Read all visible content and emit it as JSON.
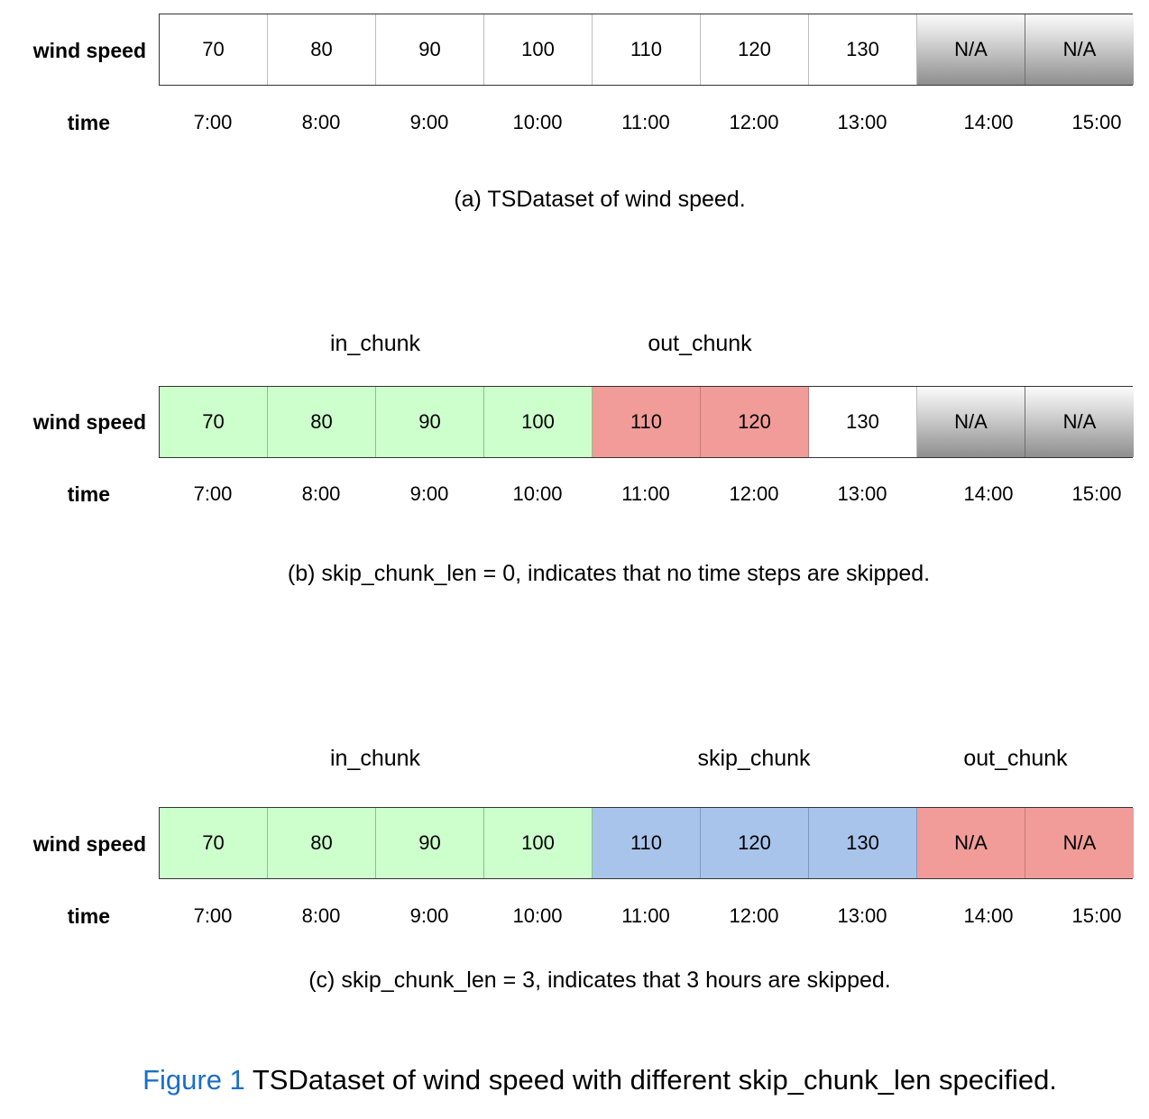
{
  "labels": {
    "row": "wind speed",
    "time": "time"
  },
  "times": [
    "7:00",
    "8:00",
    "9:00",
    "10:00",
    "11:00",
    "12:00",
    "13:00",
    "14:00",
    "15:00"
  ],
  "colors": {
    "in_chunk": "#ccffcc",
    "out_chunk": "#f19c99",
    "skip_chunk": "#a9c4eb",
    "missing": "#8e8e8e",
    "plain": "#ffffff"
  },
  "panel_a": {
    "values": [
      "70",
      "80",
      "90",
      "100",
      "110",
      "120",
      "130",
      "N/A",
      "N/A"
    ],
    "caption": "(a) TSDataset of wind speed."
  },
  "panel_b": {
    "values": [
      "70",
      "80",
      "90",
      "100",
      "110",
      "120",
      "130",
      "N/A",
      "N/A"
    ],
    "chunks": {
      "in": "in_chunk",
      "out": "out_chunk"
    },
    "caption": "(b) skip_chunk_len = 0, indicates that no time steps are skipped."
  },
  "panel_c": {
    "values": [
      "70",
      "80",
      "90",
      "100",
      "110",
      "120",
      "130",
      "N/A",
      "N/A"
    ],
    "chunks": {
      "in": "in_chunk",
      "skip": "skip_chunk",
      "out": "out_chunk"
    },
    "caption": "(c) skip_chunk_len = 3, indicates that 3 hours are skipped."
  },
  "figure": {
    "number": "Figure 1",
    "title": " TSDataset of wind speed with different skip_chunk_len specified."
  }
}
